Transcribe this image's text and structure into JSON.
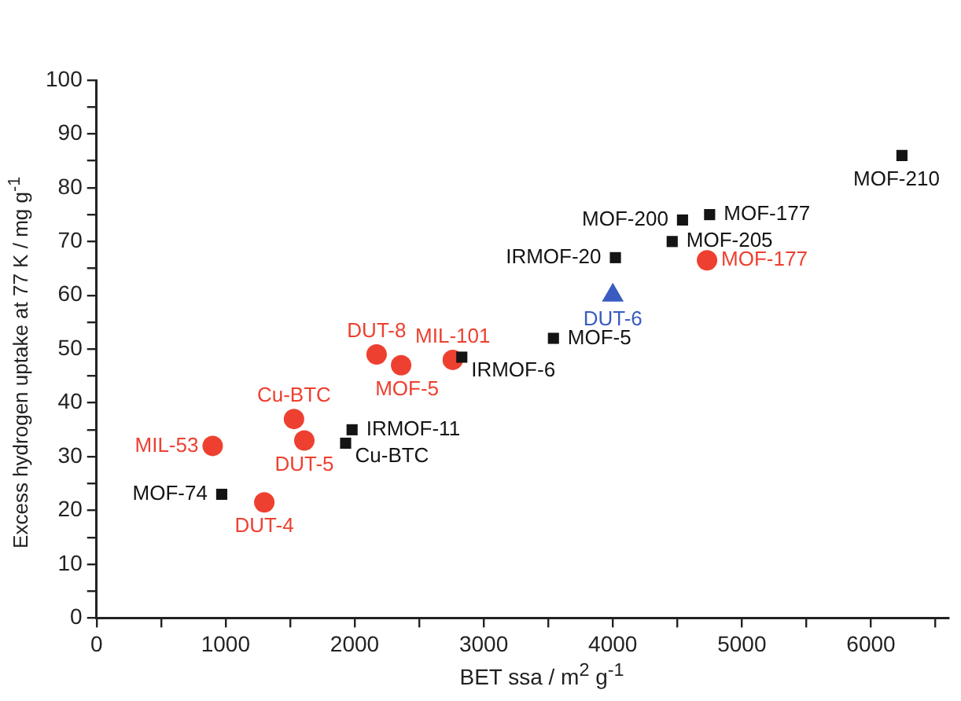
{
  "chart_data": {
    "type": "scatter",
    "xlabel": "BET ssa / m$^{2}$ g$^{-1}$",
    "ylabel": "Excess hydrogen uptake at 77 K / mg g$^{-1}$",
    "xlim": [
      0,
      6600
    ],
    "xticks": [
      0,
      {
        "value": 500,
        "label": null
      },
      1000,
      {
        "value": 1500,
        "label": null
      },
      2000,
      {
        "value": 2500,
        "label": null
      },
      3000,
      {
        "value": 3500,
        "label": null
      },
      4000,
      {
        "value": 4500,
        "label": null
      },
      5000,
      {
        "value": 5500,
        "label": null
      },
      6000,
      {
        "value": 6500,
        "label": null
      }
    ],
    "ylim": [
      0,
      100
    ],
    "yticks": [
      0,
      {
        "value": 5,
        "label": null
      },
      10,
      {
        "value": 15,
        "label": null
      },
      20,
      {
        "value": 25,
        "label": null
      },
      30,
      {
        "value": 35,
        "label": null
      },
      40,
      {
        "value": 45,
        "label": null
      },
      50,
      {
        "value": 55,
        "label": null
      },
      60,
      {
        "value": 65,
        "label": null
      },
      70,
      {
        "value": 75,
        "label": null
      },
      80,
      {
        "value": 85,
        "label": null
      },
      90,
      {
        "value": 95,
        "label": null
      },
      100
    ],
    "legend": false,
    "series": [
      {
        "color": "#141414",
        "marker": "square",
        "x": [
          970,
          1930,
          1980,
          2830,
          3540,
          4020,
          4460,
          4540,
          4750,
          6240
        ],
        "values": [
          23,
          32.5,
          35,
          48.5,
          52,
          67,
          70,
          74,
          75,
          86
        ],
        "value_labels": [
          "MOF-74",
          "Cu-BTC",
          "IRMOF-11",
          "IRMOF-6",
          "MOF-5",
          "IRMOF-20",
          "MOF-205",
          "MOF-200",
          "MOF-177",
          "MOF-210"
        ]
      },
      {
        "color": "#ee4030",
        "marker": "circle",
        "x": [
          900,
          1300,
          1530,
          1610,
          2170,
          2360,
          2760,
          4730
        ],
        "values": [
          32,
          21.5,
          37,
          33,
          49,
          47,
          48,
          66.5
        ],
        "value_labels": [
          "MIL-53",
          "DUT-4",
          "Cu-BTC",
          "DUT-5",
          "DUT-8",
          "MOF-5",
          "MIL-101",
          "MOF-177"
        ]
      },
      {
        "color": "#3a5cc0",
        "marker": "triangle",
        "x": [
          4000
        ],
        "values": [
          60
        ],
        "value_labels": [
          "DUT-6"
        ]
      }
    ]
  }
}
